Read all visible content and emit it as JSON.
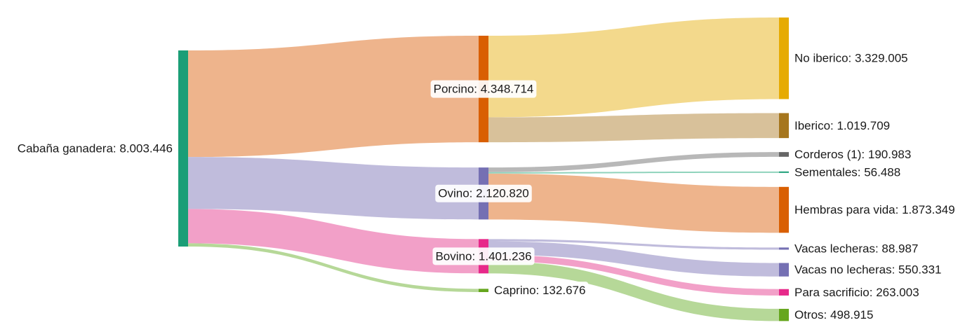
{
  "chart_data": {
    "type": "sankey",
    "colors": {
      "cabana": "#1b9e77",
      "porcino": "#d95f02",
      "ovino": "#7570b3",
      "bovino": "#e7298a",
      "caprino": "#66a61e",
      "no_iberico": "#e6ab02",
      "iberico": "#a6761d",
      "corderos": "#666666",
      "sementales": "#1b9e77",
      "hembras": "#d95f02",
      "vacas_lecheras": "#7570b3",
      "vacas_no_lecheras": "#7570b3",
      "para_sacrificio": "#e7298a",
      "otros": "#66a61e"
    },
    "nodes": [
      {
        "id": "cabana",
        "label": "Cabaña ganadera: 8.003.446",
        "value": 8003446,
        "column": 0
      },
      {
        "id": "porcino",
        "label": "Porcino: 4.348.714",
        "value": 4348714,
        "column": 1
      },
      {
        "id": "ovino",
        "label": "Ovino: 2.120.820",
        "value": 2120820,
        "column": 1
      },
      {
        "id": "bovino",
        "label": "Bovino: 1.401.236",
        "value": 1401236,
        "column": 1
      },
      {
        "id": "caprino",
        "label": "Caprino: 132.676",
        "value": 132676,
        "column": 1
      },
      {
        "id": "no_iberico",
        "label": "No iberico: 3.329.005",
        "value": 3329005,
        "column": 2
      },
      {
        "id": "iberico",
        "label": "Iberico: 1.019.709",
        "value": 1019709,
        "column": 2
      },
      {
        "id": "corderos",
        "label": "Corderos (1): 190.983",
        "value": 190983,
        "column": 2
      },
      {
        "id": "sementales",
        "label": "Sementales: 56.488",
        "value": 56488,
        "column": 2
      },
      {
        "id": "hembras",
        "label": "Hembras para vida: 1.873.349",
        "value": 1873349,
        "column": 2
      },
      {
        "id": "vacas_lecheras",
        "label": "Vacas lecheras: 88.987",
        "value": 88987,
        "column": 2
      },
      {
        "id": "vacas_no_lecheras",
        "label": "Vacas no lecheras: 550.331",
        "value": 550331,
        "column": 2
      },
      {
        "id": "para_sacrificio",
        "label": "Para sacrificio: 263.003",
        "value": 263003,
        "column": 2
      },
      {
        "id": "otros",
        "label": "Otros: 498.915",
        "value": 498915,
        "column": 2
      }
    ],
    "links": [
      {
        "source": "cabana",
        "target": "porcino",
        "value": 4348714,
        "color": "#eeb48c"
      },
      {
        "source": "cabana",
        "target": "ovino",
        "value": 2120820,
        "color": "#c0bcdc"
      },
      {
        "source": "cabana",
        "target": "bovino",
        "value": 1401236,
        "color": "#f2a0c8"
      },
      {
        "source": "cabana",
        "target": "caprino",
        "value": 132676,
        "color": "#b6d898"
      },
      {
        "source": "porcino",
        "target": "no_iberico",
        "value": 3329005,
        "color": "#f3d98c"
      },
      {
        "source": "porcino",
        "target": "iberico",
        "value": 1019709,
        "color": "#d8c19a"
      },
      {
        "source": "ovino",
        "target": "corderos",
        "value": 190983,
        "color": "#b8b8b8"
      },
      {
        "source": "ovino",
        "target": "sementales",
        "value": 56488,
        "color": "#8fd3bc"
      },
      {
        "source": "ovino",
        "target": "hembras",
        "value": 1873349,
        "color": "#eeb48c"
      },
      {
        "source": "bovino",
        "target": "vacas_lecheras",
        "value": 88987,
        "color": "#c0bcdc"
      },
      {
        "source": "bovino",
        "target": "vacas_no_lecheras",
        "value": 550331,
        "color": "#c0bcdc"
      },
      {
        "source": "bovino",
        "target": "para_sacrificio",
        "value": 263003,
        "color": "#f2a0c8"
      },
      {
        "source": "bovino",
        "target": "otros",
        "value": 498915,
        "color": "#b6d898"
      }
    ]
  }
}
